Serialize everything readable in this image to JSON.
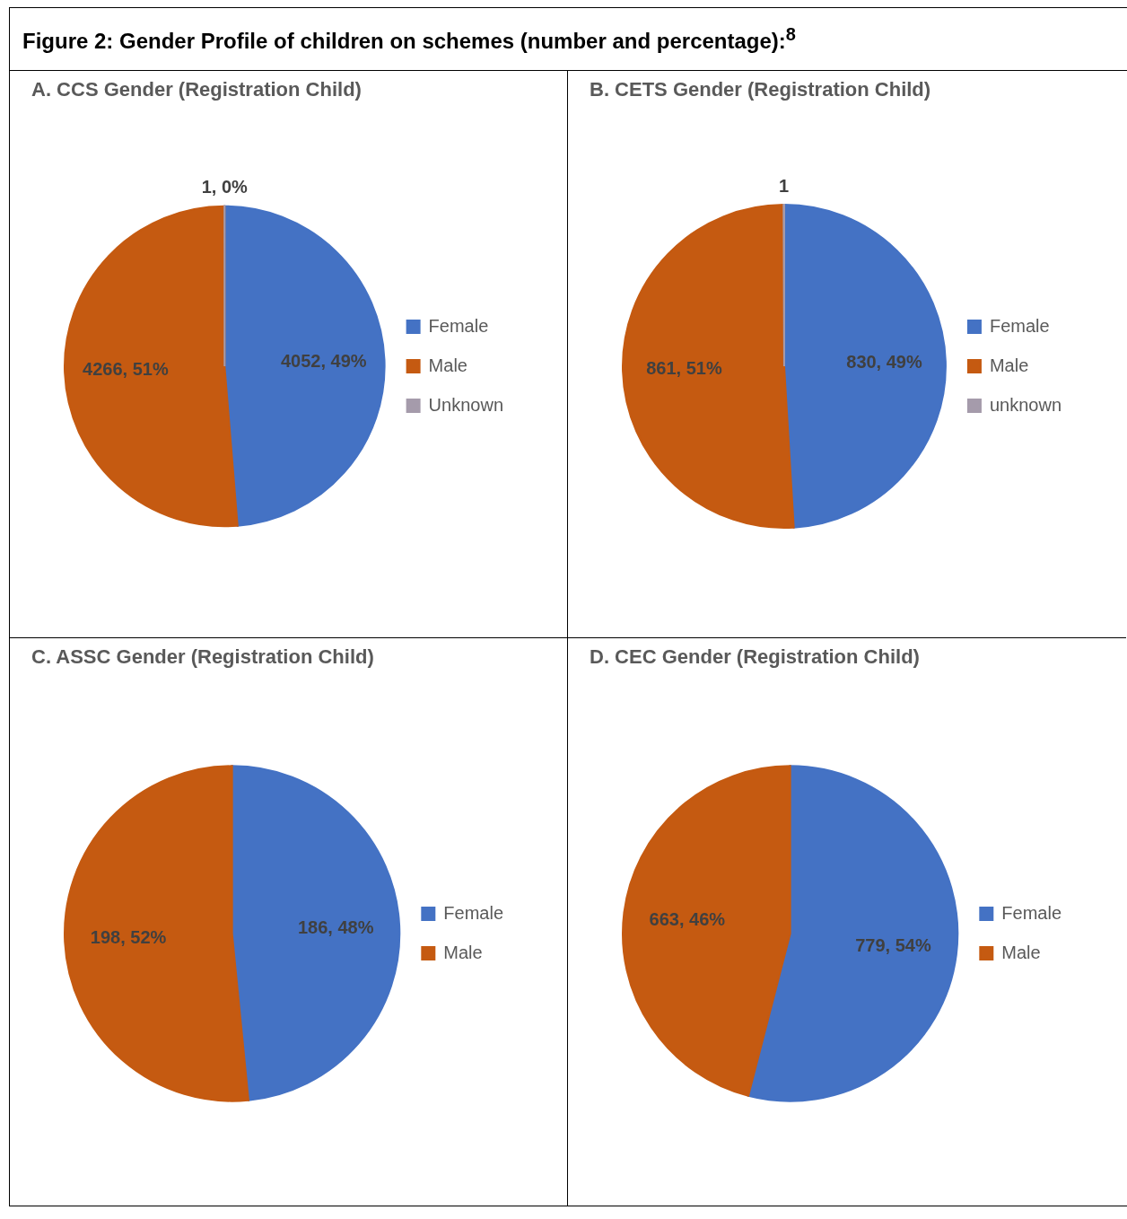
{
  "chart_data": [
    {
      "type": "pie",
      "title": "A. CCS Gender (Registration Child)",
      "annotations": [
        "Figure 2: Gender Profile of children on schemes (number and percentage):$^{8}$"
      ],
      "categories": [
        "Female",
        "Male",
        "Unknown"
      ],
      "values": [
        4052,
        4266,
        1
      ],
      "colors": [
        "#4472c4",
        "#c55a11",
        "#a59bab"
      ],
      "value_labels": [
        "4052, 49%",
        "4266, 51%",
        "1, 0%"
      ],
      "legend": "right"
    },
    {
      "type": "pie",
      "title": "B. CETS Gender (Registration Child)",
      "categories": [
        "Female",
        "Male",
        "unknown"
      ],
      "values": [
        830,
        861,
        1
      ],
      "colors": [
        "#4472c4",
        "#c55a11",
        "#a59bab"
      ],
      "value_labels": [
        "830, 49%",
        "861, 51%",
        "1"
      ],
      "legend": "right"
    },
    {
      "type": "pie",
      "title": "C. ASSC Gender (Registration Child)",
      "categories": [
        "Female",
        "Male"
      ],
      "values": [
        186,
        198
      ],
      "colors": [
        "#4472c4",
        "#c55a11"
      ],
      "value_labels": [
        "186, 48%",
        "198, 52%"
      ],
      "legend": "right"
    },
    {
      "type": "pie",
      "title": "D. CEC Gender (Registration Child)",
      "categories": [
        "Female",
        "Male"
      ],
      "values": [
        779,
        663
      ],
      "colors": [
        "#4472c4",
        "#c55a11"
      ],
      "value_labels": [
        "779, 54%",
        "663, 46%"
      ],
      "legend": "right"
    }
  ]
}
